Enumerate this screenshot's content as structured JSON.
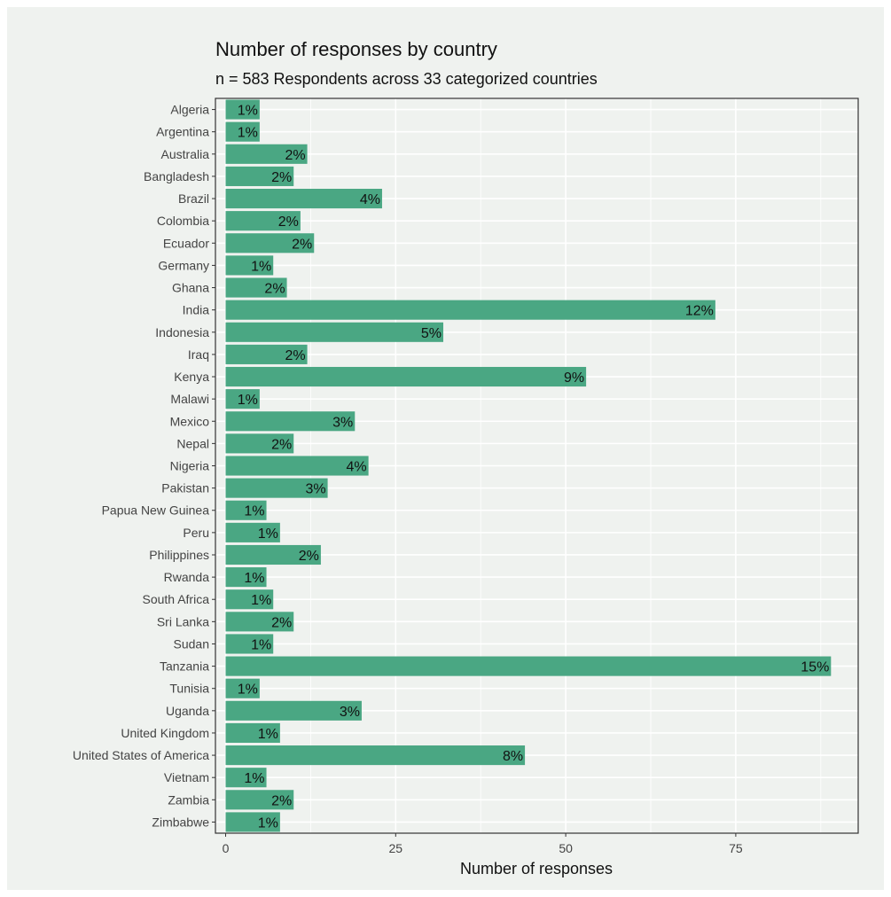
{
  "chart_data": {
    "type": "bar",
    "orientation": "horizontal",
    "title": "Number of responses by country",
    "subtitle": "n = 583 Respondents across 33 categorized countries",
    "xlabel": "Number of responses",
    "ylabel": "",
    "xlim": [
      -1.5,
      93
    ],
    "x_ticks": [
      0,
      25,
      50,
      75
    ],
    "grid": true,
    "bar_color": "#4aa783",
    "background_color": "#eff2ef",
    "gridline_color": "#ffffff",
    "categories": [
      "Algeria",
      "Argentina",
      "Australia",
      "Bangladesh",
      "Brazil",
      "Colombia",
      "Ecuador",
      "Germany",
      "Ghana",
      "India",
      "Indonesia",
      "Iraq",
      "Kenya",
      "Malawi",
      "Mexico",
      "Nepal",
      "Nigeria",
      "Pakistan",
      "Papua New Guinea",
      "Peru",
      "Philippines",
      "Rwanda",
      "South Africa",
      "Sri Lanka",
      "Sudan",
      "Tanzania",
      "Tunisia",
      "Uganda",
      "United Kingdom",
      "United States of America",
      "Vietnam",
      "Zambia",
      "Zimbabwe"
    ],
    "values": [
      5,
      5,
      12,
      10,
      23,
      11,
      13,
      7,
      9,
      72,
      32,
      12,
      53,
      5,
      19,
      10,
      21,
      15,
      6,
      8,
      14,
      6,
      7,
      10,
      7,
      89,
      5,
      20,
      8,
      44,
      6,
      10,
      8
    ],
    "labels": [
      "1%",
      "1%",
      "2%",
      "2%",
      "4%",
      "2%",
      "2%",
      "1%",
      "2%",
      "12%",
      "5%",
      "2%",
      "9%",
      "1%",
      "3%",
      "2%",
      "4%",
      "3%",
      "1%",
      "1%",
      "2%",
      "1%",
      "1%",
      "2%",
      "1%",
      "15%",
      "1%",
      "3%",
      "1%",
      "8%",
      "1%",
      "2%",
      "1%"
    ]
  }
}
